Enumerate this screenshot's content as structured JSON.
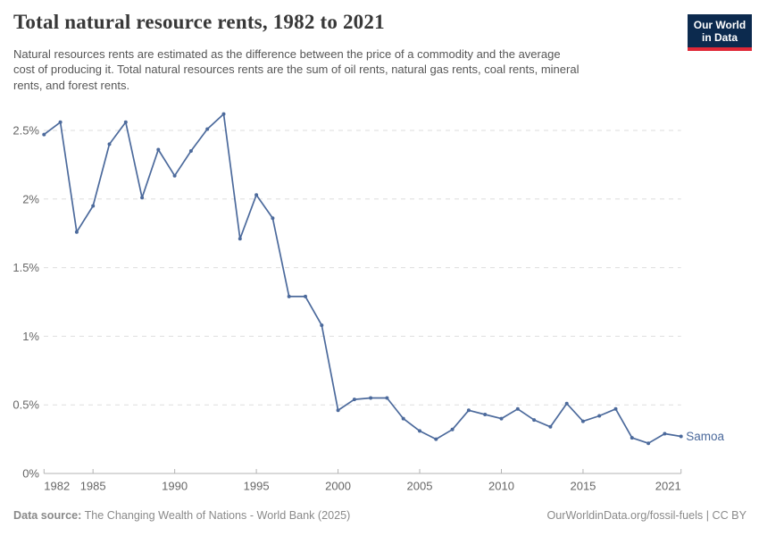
{
  "header": {
    "title": "Total natural resource rents, 1982 to 2021",
    "subtitle_lines": [
      "Natural resources rents are estimated as the difference between the price of a commodity and the average",
      "cost of producing it. Total natural resources rents are the sum of oil rents, natural gas rents, coal rents, mineral",
      "rents, and forest rents."
    ],
    "logo": {
      "line1": "Our World",
      "line2": "in Data"
    }
  },
  "chart_data": {
    "type": "line",
    "title": "Total natural resource rents, 1982 to 2021",
    "xlabel": "",
    "ylabel": "",
    "xlim": [
      1982,
      2021
    ],
    "ylim": [
      0,
      2.75
    ],
    "grid": "horizontal-dashed",
    "legend_position": "end-of-line-label",
    "x": [
      1982,
      1983,
      1984,
      1985,
      1986,
      1987,
      1988,
      1989,
      1990,
      1991,
      1992,
      1993,
      1994,
      1995,
      1996,
      1997,
      1998,
      1999,
      2000,
      2001,
      2002,
      2003,
      2004,
      2005,
      2006,
      2007,
      2008,
      2009,
      2010,
      2011,
      2012,
      2013,
      2014,
      2015,
      2016,
      2017,
      2018,
      2019,
      2020,
      2021
    ],
    "series": [
      {
        "name": "Samoa",
        "color": "#4c6a9c",
        "unit": "%",
        "values": [
          2.47,
          2.56,
          1.76,
          1.95,
          2.4,
          2.56,
          2.01,
          2.36,
          2.17,
          2.35,
          2.51,
          2.62,
          1.71,
          2.03,
          1.86,
          1.29,
          1.29,
          1.08,
          0.46,
          0.54,
          0.55,
          0.55,
          0.4,
          0.31,
          0.25,
          0.32,
          0.46,
          0.43,
          0.4,
          0.47,
          0.39,
          0.34,
          0.51,
          0.38,
          0.42,
          0.47,
          0.26,
          0.22,
          0.29,
          0.27
        ]
      }
    ],
    "yticks": [
      {
        "v": 0,
        "label": "0%"
      },
      {
        "v": 0.5,
        "label": "0.5%"
      },
      {
        "v": 1,
        "label": "1%"
      },
      {
        "v": 1.5,
        "label": "1.5%"
      },
      {
        "v": 2,
        "label": "2%"
      },
      {
        "v": 2.5,
        "label": "2.5%"
      }
    ],
    "xticks": [
      1982,
      1985,
      1990,
      1995,
      2000,
      2005,
      2010,
      2015,
      2021
    ]
  },
  "footer": {
    "datasource_label": "Data source:",
    "datasource_value": " The Changing Wealth of Nations - World Bank (2025)",
    "credit": "OurWorldinData.org/fossil-fuels | CC BY"
  },
  "colors": {
    "line": "#4c6a9c",
    "gridline": "#dedede",
    "axis": "#b3b3b3",
    "tick_label": "#666666",
    "title": "#383838",
    "subtitle": "#565656",
    "footer": "#8a8a8a",
    "logo_bg": "#0c2a4e",
    "logo_accent": "#e02837"
  }
}
